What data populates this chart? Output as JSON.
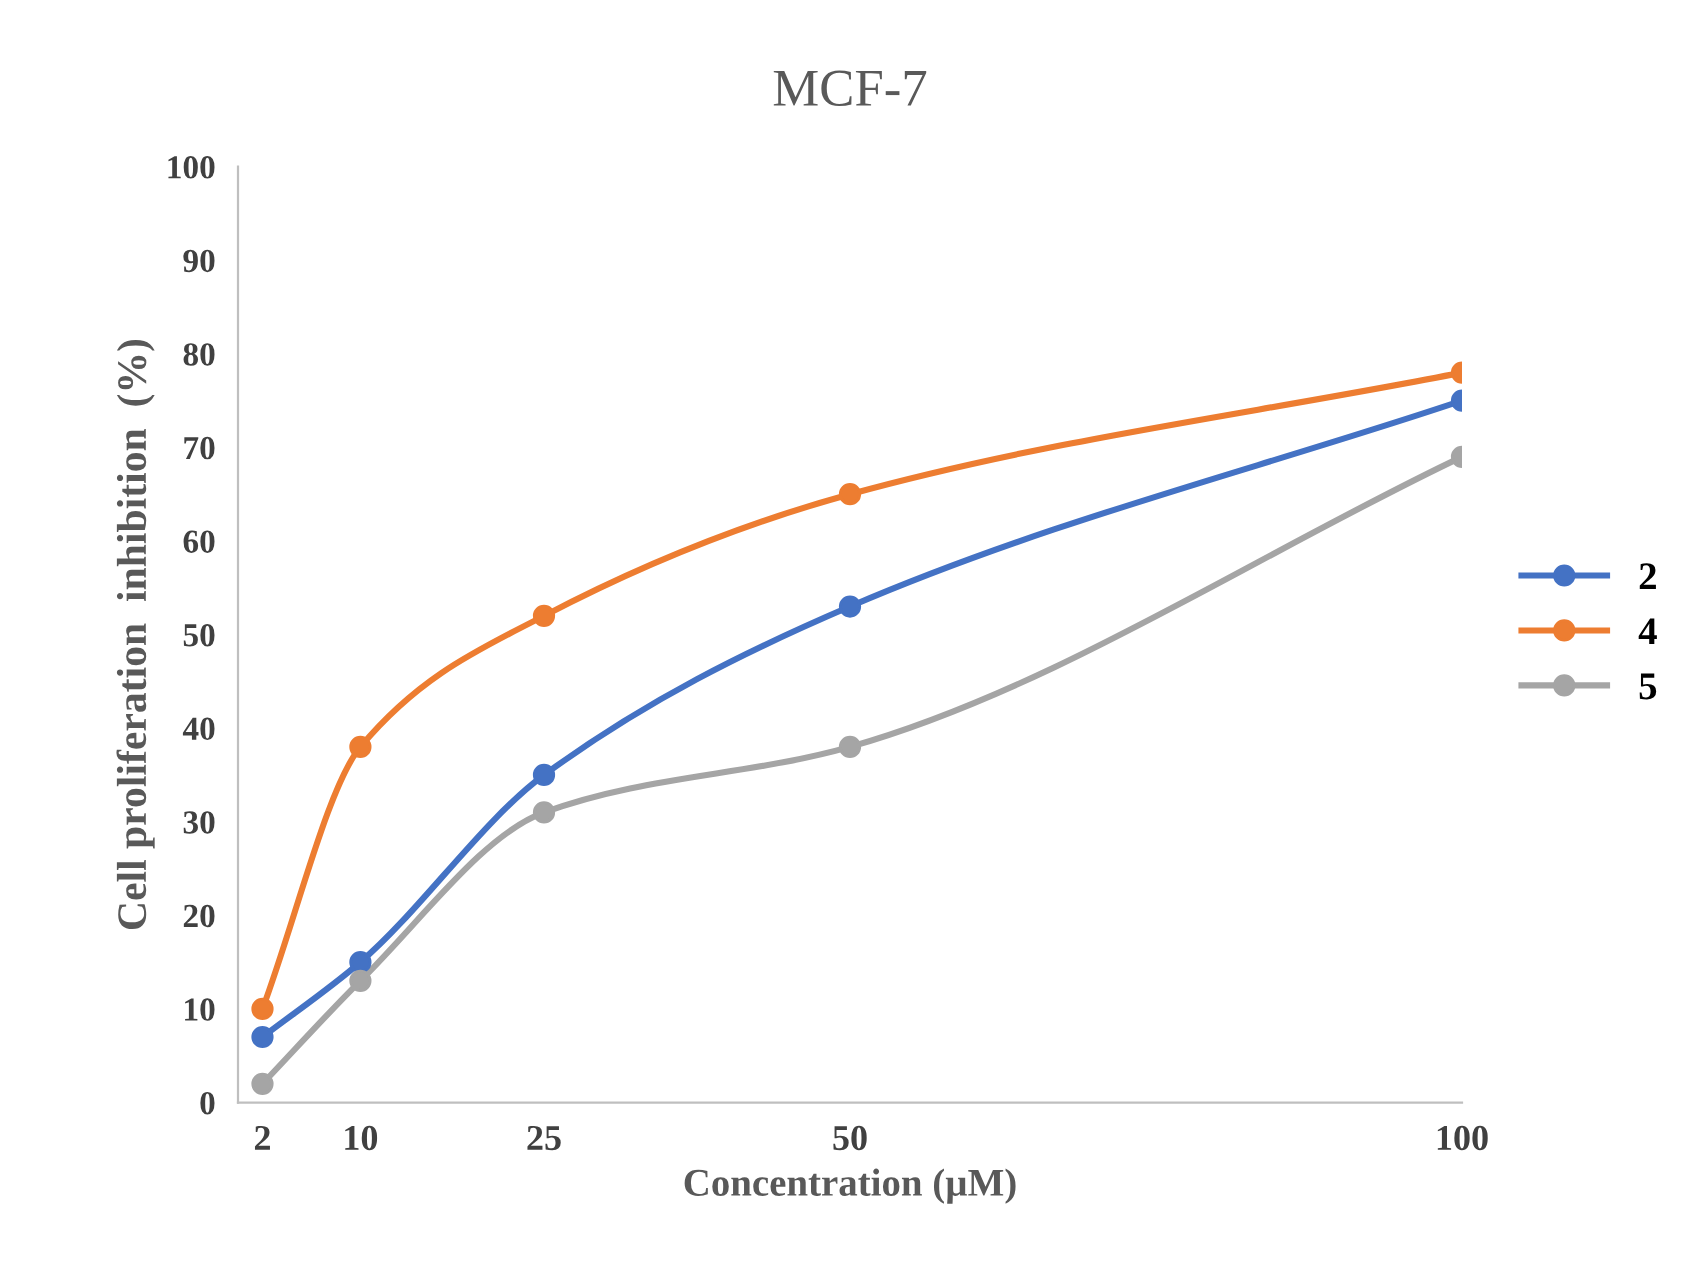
{
  "chart_data": {
    "type": "line",
    "title": "MCF-7",
    "xlabel": "Concentration (µM)",
    "ylabel": "Cell proliferation  inhibition  (%)",
    "x": [
      2,
      10,
      25,
      50,
      100
    ],
    "series": [
      {
        "name": "2",
        "color": "#4472c4",
        "values": [
          7,
          15,
          35,
          53,
          75
        ]
      },
      {
        "name": "4",
        "color": "#ed7d31",
        "values": [
          10,
          38,
          52,
          65,
          78
        ]
      },
      {
        "name": "5",
        "color": "#a5a5a5",
        "values": [
          2,
          13,
          31,
          38,
          69
        ]
      }
    ],
    "xlim": [
      0,
      100
    ],
    "xticks": [
      2,
      10,
      25,
      50,
      100
    ],
    "ylim": [
      0,
      100
    ],
    "yticks": [
      0,
      10,
      20,
      30,
      40,
      50,
      60,
      70,
      80,
      90,
      100
    ],
    "grid": false,
    "legend": "right",
    "marker": "circle",
    "line_style": "solid"
  }
}
